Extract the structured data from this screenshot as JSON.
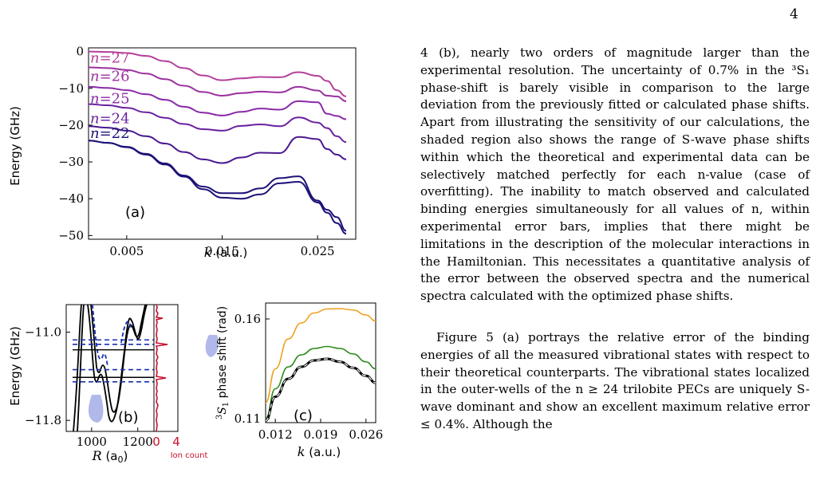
{
  "page_number": "4",
  "text": {
    "para1": "4 (b), nearly two orders of magnitude larger than the experimental resolution. The uncertainty of 0.7% in the ³S₁ phase-shift is barely visible in comparison to the large deviation from the previously fitted or calculated phase shifts. Apart from illustrating the sensitivity of our calculations, the shaded region also shows the range of S-wave phase shifts within which the theoretical and experimental data can be selectively matched perfectly for each n-value (case of overfitting). The inability to match observed and calculated binding energies simultaneously for all values of n, within experimental error bars, implies that there might be limitations in the description of the molecular interactions in the Hamiltonian. This necessitates a quantitative analysis of the error between the observed spectra and the numerical spectra calculated with the optimized phase shifts.",
    "para2": "Figure 5 (a) portrays the relative error of the binding energies of all the measured vibrational states with respect to their theoretical counterparts. The vibrational states localized in the outer-wells of the n ≥ 24 trilobite PECs are uniquely S-wave dominant and show an excellent maximum relative error ≤ 0.4%. Although the"
  },
  "colors": {
    "n27": "#b4409a",
    "n26": "#9c2fa0",
    "n25": "#8a2aa8",
    "n24": "#6a22a0",
    "n23": "#4a1890",
    "n22": "#1c1278",
    "pec": "#000000",
    "dashed": "#1a2fb5",
    "shade": "#a8b0e8",
    "ion": "#c8102e",
    "curve_orange": "#f0a020",
    "curve_green": "#2a8a1a",
    "curve_black": "#000000",
    "curve_blue_dash": "#3050c0"
  },
  "chart_data": [
    {
      "panel": "(a)",
      "type": "line",
      "xlabel": "k (a.u.)",
      "ylabel": "Energy (GHz)",
      "xlim": [
        0.001,
        0.029
      ],
      "ylim": [
        -51,
        1
      ],
      "xticks": [
        "0.005",
        "0.015",
        "0.025"
      ],
      "yticks": [
        "0",
        "−10",
        "−20",
        "−30",
        "−40",
        "−50"
      ],
      "x": [
        0.001,
        0.003,
        0.005,
        0.007,
        0.009,
        0.011,
        0.013,
        0.015,
        0.017,
        0.019,
        0.021,
        0.023,
        0.025,
        0.026,
        0.027,
        0.028
      ],
      "series": [
        {
          "name": "n=27",
          "values": [
            0,
            -0.1,
            -0.4,
            -1.2,
            -2.6,
            -4.5,
            -6.5,
            -7.8,
            -7.3,
            -6.9,
            -7.0,
            -5.6,
            -6.6,
            -8.0,
            -10.5,
            -12.2
          ]
        },
        {
          "name": "n=26",
          "values": [
            -4.3,
            -4.5,
            -5.0,
            -6.0,
            -7.5,
            -9.3,
            -11.0,
            -12.0,
            -11.3,
            -10.9,
            -11.1,
            -9.6,
            -10.6,
            -12.0,
            -12.2,
            -13.5
          ]
        },
        {
          "name": "n=25",
          "values": [
            -9.6,
            -9.9,
            -10.5,
            -11.6,
            -13.1,
            -15.0,
            -16.6,
            -17.4,
            -16.4,
            -15.5,
            -15.8,
            -13.5,
            -13.8,
            -16.9,
            -17.5,
            -18.4
          ]
        },
        {
          "name": "n=24",
          "values": [
            -14.3,
            -14.6,
            -15.3,
            -16.5,
            -18.0,
            -19.7,
            -21.1,
            -21.5,
            -20.2,
            -19.8,
            -20.3,
            -17.9,
            -19.3,
            -20.8,
            -23.0,
            -24.6
          ]
        },
        {
          "name": "",
          "values": [
            -20.3,
            -20.7,
            -21.5,
            -23.0,
            -25.0,
            -27.3,
            -29.3,
            -30.3,
            -28.8,
            -27.5,
            -27.6,
            -23.2,
            -23.8,
            -26.5,
            -28.0,
            -29.3
          ]
        },
        {
          "name": "n=22",
          "values": [
            -24.2,
            -24.8,
            -25.9,
            -27.8,
            -30.4,
            -33.7,
            -36.7,
            -38.5,
            -38.5,
            -37.2,
            -34.4,
            -33.9,
            -40.5,
            -43.0,
            -45.0,
            -48.7
          ]
        },
        {
          "name": "",
          "values": [
            -24.2,
            -24.8,
            -26.0,
            -28.0,
            -30.7,
            -34.0,
            -37.4,
            -39.7,
            -40.0,
            -38.8,
            -35.8,
            -35.4,
            -41.0,
            -43.8,
            -46.6,
            -49.5
          ]
        }
      ],
      "labels": [
        "n=27",
        "n=26",
        "n=25",
        "n=24",
        "n=22"
      ]
    },
    {
      "panel": "(b)",
      "type": "line",
      "xlabel": "R (a₀)",
      "ylabel": "Energy (GHz)",
      "xlim": [
        890,
        1270
      ],
      "ylim": [
        -11.9,
        -10.75
      ],
      "xticks": [
        "1000",
        "1200"
      ],
      "yticks": [
        "−11.0",
        "−11.8"
      ],
      "dashed_levels": [
        -11.07,
        -11.11,
        -11.34,
        -11.45
      ],
      "solid_levels": [
        -11.16,
        -11.41
      ],
      "ion_xlabel": "Ion count",
      "ion_xticks": [
        "0",
        "4"
      ]
    },
    {
      "panel": "(c)",
      "type": "line",
      "xlabel": "k (a.u.)",
      "ylabel": "³S₁ phase shift (rad)",
      "xlim": [
        0.0105,
        0.0275
      ],
      "ylim": [
        0.108,
        0.168
      ],
      "xticks": [
        "0.012",
        "0.019",
        "0.026"
      ],
      "yticks": [
        "0.11",
        "0.16"
      ],
      "x": [
        0.0105,
        0.012,
        0.014,
        0.016,
        0.018,
        0.02,
        0.022,
        0.024,
        0.026,
        0.0275
      ],
      "series": [
        {
          "name": "",
          "values": [
            0.118,
            0.135,
            0.15,
            0.158,
            0.163,
            0.165,
            0.1652,
            0.1645,
            0.162,
            0.159
          ]
        },
        {
          "name": "",
          "values": [
            0.11,
            0.125,
            0.136,
            0.142,
            0.1452,
            0.1462,
            0.1452,
            0.1425,
            0.1385,
            0.135
          ]
        },
        {
          "name": "",
          "values": [
            0.109,
            0.121,
            0.13,
            0.136,
            0.1392,
            0.14,
            0.1385,
            0.1355,
            0.1315,
            0.128
          ]
        }
      ]
    }
  ],
  "panel_b_texts": {
    "panel_label": "(b)",
    "xlabel_main": "R (a",
    "xlabel_sub": "0",
    "xlabel_end": ")"
  }
}
